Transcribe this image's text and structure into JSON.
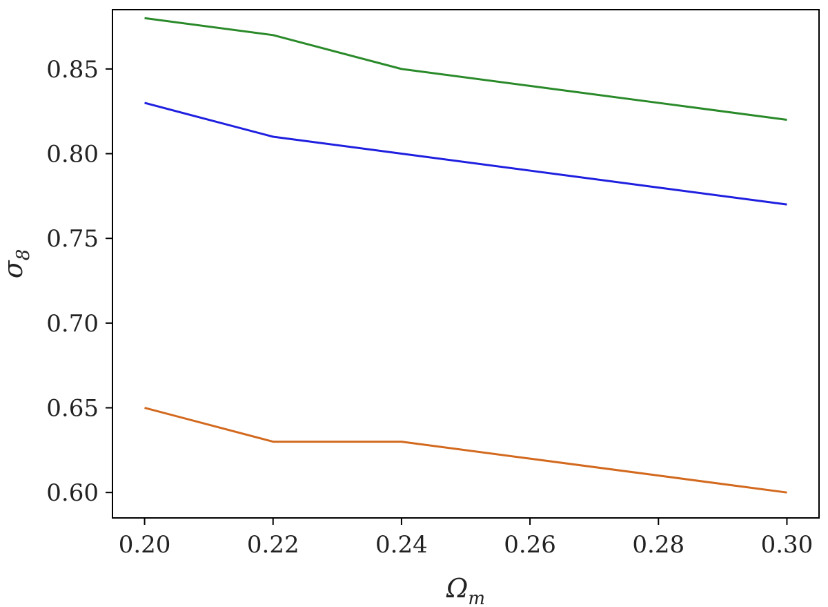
{
  "chart_data": {
    "type": "line",
    "title": "",
    "xlabel": {
      "base": "Ω",
      "sub": "m"
    },
    "ylabel": {
      "base": "σ",
      "sub": "8"
    },
    "xlim": [
      0.195,
      0.305
    ],
    "ylim": [
      0.585,
      0.885
    ],
    "x_ticks": [
      0.2,
      0.22,
      0.24,
      0.26,
      0.28,
      0.3
    ],
    "x_tick_labels": [
      "0.20",
      "0.22",
      "0.24",
      "0.26",
      "0.28",
      "0.30"
    ],
    "y_ticks": [
      0.6,
      0.65,
      0.7,
      0.75,
      0.8,
      0.85
    ],
    "y_tick_labels": [
      "0.60",
      "0.65",
      "0.70",
      "0.75",
      "0.80",
      "0.85"
    ],
    "grid": false,
    "legend": "none",
    "x": [
      0.2,
      0.22,
      0.24,
      0.26,
      0.28,
      0.3
    ],
    "series": [
      {
        "color": "#2a8a2a",
        "values": [
          0.88,
          0.87,
          0.85,
          0.84,
          0.83,
          0.82
        ]
      },
      {
        "color": "#1f1fe0",
        "values": [
          0.83,
          0.81,
          0.8,
          0.79,
          0.78,
          0.77
        ]
      },
      {
        "color": "#d2691e",
        "values": [
          0.65,
          0.63,
          0.63,
          0.62,
          0.61,
          0.6
        ]
      }
    ]
  }
}
